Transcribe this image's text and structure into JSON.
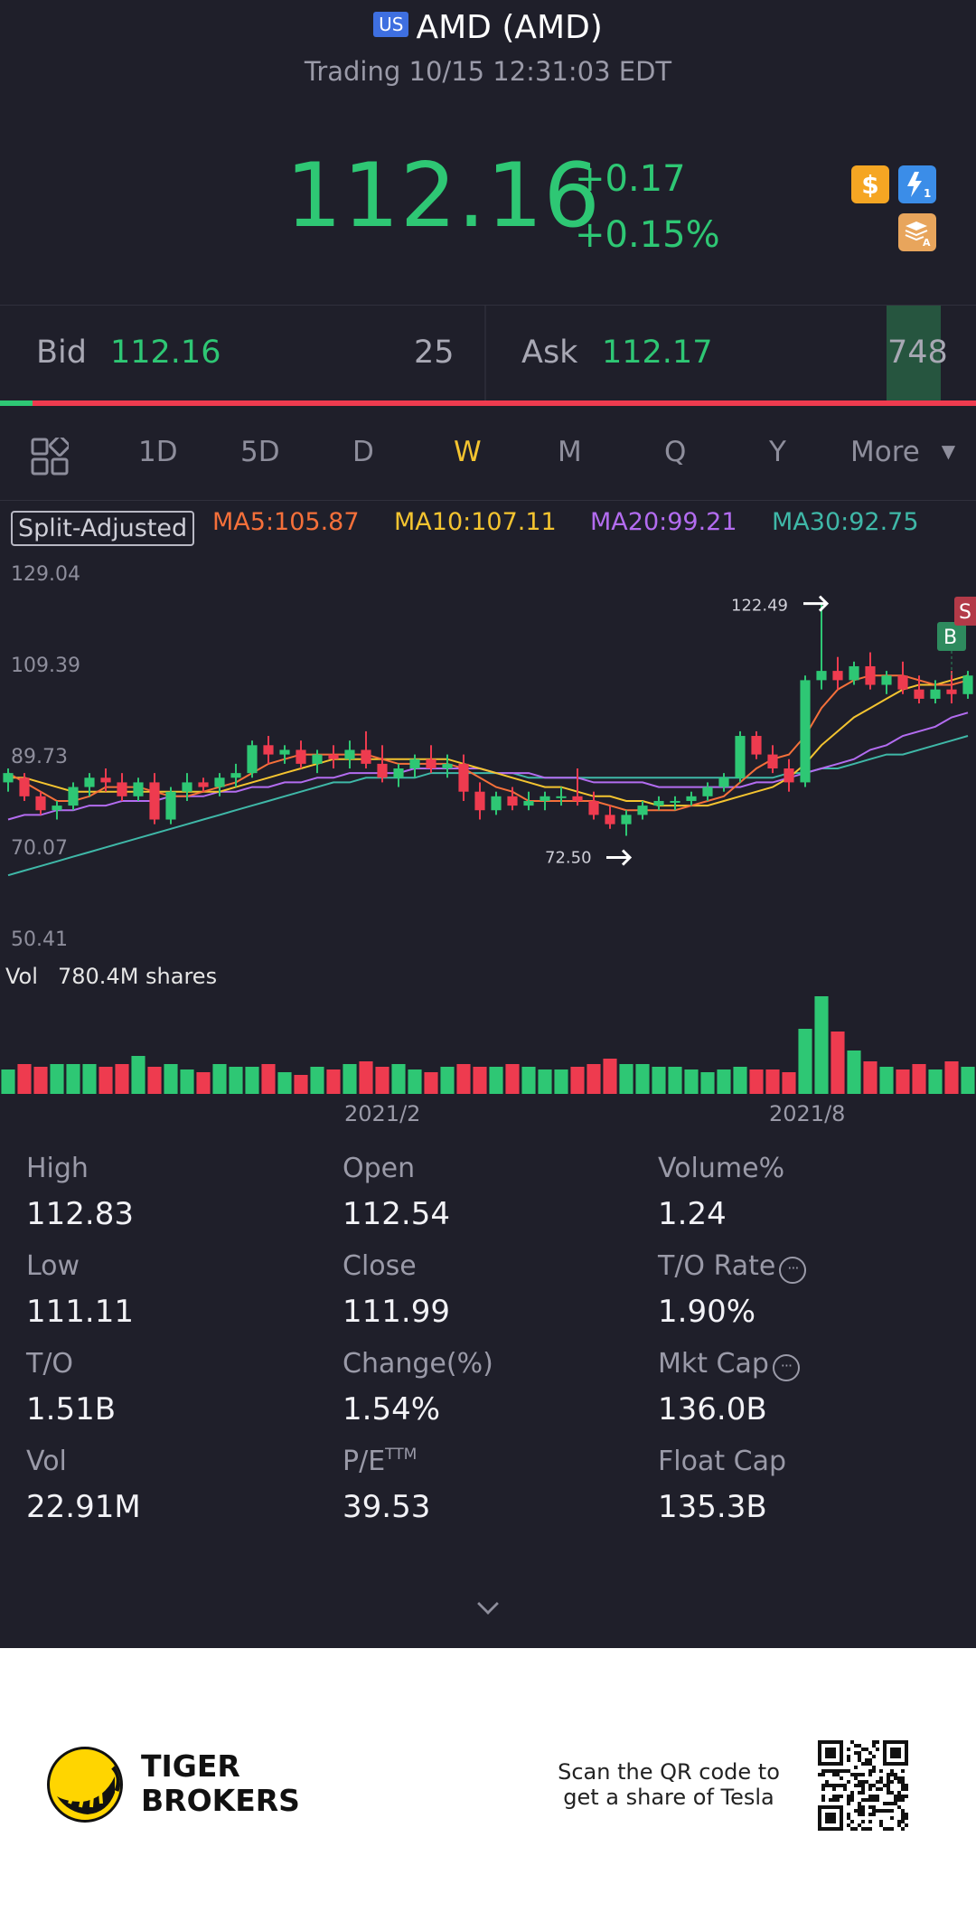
{
  "header": {
    "market_badge": "US",
    "title": "AMD (AMD)",
    "subtitle": "Trading 10/15 12:31:03 EDT"
  },
  "quote": {
    "price": "112.16",
    "change": "+0.17",
    "change_pct": "+0.15%",
    "icons": [
      "dollar-icon",
      "lightning-level-1-icon",
      "layers-a-icon"
    ]
  },
  "bid_ask": {
    "bid_label": "Bid",
    "bid_price": "112.16",
    "bid_qty": "25",
    "ask_label": "Ask",
    "ask_price": "112.17",
    "ask_qty": "748"
  },
  "tabs": {
    "items": [
      "1D",
      "5D",
      "D",
      "W",
      "M",
      "Q",
      "Y",
      "More"
    ],
    "active": "W"
  },
  "indicators": {
    "split_label": "Split-Adjusted",
    "ma5": "MA5:105.87",
    "ma10": "MA10:107.11",
    "ma20": "MA20:99.21",
    "ma30": "MA30:92.75",
    "colors": {
      "ma5": "#f5703a",
      "ma10": "#f4c430",
      "ma20": "#b36cf0",
      "ma30": "#3fb8a8"
    }
  },
  "chart_data": {
    "type": "candlestick",
    "y_ticks": [
      "129.04",
      "109.39",
      "89.73",
      "70.07",
      "50.41"
    ],
    "ylim": [
      50.41,
      129.04
    ],
    "high_marker": "122.49",
    "low_marker": "72.50",
    "trade_markers": [
      "B",
      "S"
    ],
    "x_ticks": [
      "2021/2",
      "2021/8"
    ],
    "volume_label": "Vol",
    "volume_value": "780.4M shares",
    "up_color": "#2ec774",
    "down_color": "#ee3b4f",
    "candles": [
      [
        84,
        87,
        82,
        86
      ],
      [
        85,
        86,
        80,
        81
      ],
      [
        81,
        82,
        77,
        78
      ],
      [
        78,
        80,
        76,
        79
      ],
      [
        79,
        84,
        78,
        83
      ],
      [
        83,
        86,
        81,
        85
      ],
      [
        85,
        87,
        82,
        84
      ],
      [
        84,
        86,
        80,
        81
      ],
      [
        81,
        85,
        80,
        84
      ],
      [
        84,
        86,
        75,
        76
      ],
      [
        76,
        83,
        75,
        82
      ],
      [
        82,
        86,
        80,
        84
      ],
      [
        84,
        85,
        82,
        83
      ],
      [
        83,
        86,
        81,
        85
      ],
      [
        85,
        88,
        83,
        86
      ],
      [
        86,
        93,
        85,
        92
      ],
      [
        92,
        94,
        88,
        90
      ],
      [
        90,
        92,
        88,
        91
      ],
      [
        91,
        93,
        87,
        88
      ],
      [
        88,
        91,
        86,
        90
      ],
      [
        90,
        92,
        87,
        89
      ],
      [
        89,
        93,
        87,
        91
      ],
      [
        91,
        95,
        87,
        88
      ],
      [
        88,
        92,
        84,
        85
      ],
      [
        85,
        88,
        83,
        87
      ],
      [
        87,
        90,
        85,
        89
      ],
      [
        89,
        92,
        86,
        87
      ],
      [
        87,
        90,
        85,
        88
      ],
      [
        88,
        90,
        80,
        82
      ],
      [
        82,
        84,
        76,
        78
      ],
      [
        78,
        82,
        77,
        81
      ],
      [
        81,
        83,
        78,
        79
      ],
      [
        79,
        82,
        78,
        80
      ],
      [
        80,
        82,
        78,
        81
      ],
      [
        81,
        83,
        79,
        81
      ],
      [
        81,
        87,
        79,
        80
      ],
      [
        80,
        82,
        76,
        77
      ],
      [
        77,
        79,
        74,
        75
      ],
      [
        75,
        78,
        72.5,
        77
      ],
      [
        77,
        80,
        76,
        79
      ],
      [
        79,
        81,
        78,
        80
      ],
      [
        80,
        81,
        78,
        80
      ],
      [
        80,
        82,
        79,
        81
      ],
      [
        81,
        84,
        80,
        83
      ],
      [
        83,
        86,
        82,
        85
      ],
      [
        85,
        95,
        84,
        94
      ],
      [
        94,
        95,
        89,
        90
      ],
      [
        90,
        92,
        86,
        87
      ],
      [
        87,
        89,
        82,
        84
      ],
      [
        84,
        107,
        83,
        106
      ],
      [
        106,
        122.49,
        104,
        108
      ],
      [
        108,
        111,
        104,
        106
      ],
      [
        106,
        110,
        105,
        109
      ],
      [
        109,
        112,
        104,
        105
      ],
      [
        105,
        108,
        103,
        107
      ],
      [
        107,
        110,
        103,
        104
      ],
      [
        104,
        107,
        101,
        102
      ],
      [
        102,
        106,
        101,
        104
      ],
      [
        104,
        108,
        101,
        103
      ],
      [
        103,
        108,
        102,
        107
      ]
    ],
    "ma5": [
      86,
      84,
      82,
      80,
      80,
      81,
      83,
      83,
      83,
      82,
      81,
      81,
      82,
      83,
      84,
      86,
      88,
      89,
      90,
      90,
      90,
      90,
      90,
      89,
      88,
      88,
      88,
      88,
      87,
      85,
      83,
      82,
      80,
      80,
      80,
      80,
      80,
      79,
      78,
      78,
      78,
      78,
      79,
      80,
      81,
      84,
      87,
      89,
      90,
      94,
      100,
      104,
      106,
      107,
      107,
      107,
      106,
      105,
      105,
      106
    ],
    "ma10": [
      85,
      85,
      84,
      83,
      82,
      82,
      82,
      82,
      82,
      82,
      82,
      82,
      82,
      82,
      83,
      84,
      85,
      86,
      87,
      88,
      89,
      89,
      89,
      89,
      89,
      89,
      89,
      89,
      88,
      87,
      86,
      85,
      84,
      83,
      83,
      82,
      81,
      81,
      80,
      80,
      79,
      79,
      79,
      79,
      80,
      81,
      82,
      83,
      85,
      88,
      92,
      95,
      98,
      100,
      102,
      104,
      105,
      105,
      106,
      107
    ],
    "ma20": [
      76,
      77,
      77,
      78,
      78,
      79,
      79,
      80,
      80,
      80,
      81,
      81,
      81,
      82,
      82,
      83,
      83,
      84,
      84,
      85,
      85,
      86,
      86,
      86,
      86,
      87,
      87,
      87,
      87,
      87,
      86,
      86,
      86,
      85,
      85,
      85,
      84,
      84,
      84,
      84,
      83,
      83,
      83,
      83,
      83,
      83,
      84,
      84,
      85,
      86,
      87,
      88,
      89,
      91,
      92,
      94,
      95,
      96,
      98,
      99
    ],
    "ma30": [
      64,
      65,
      66,
      67,
      68,
      69,
      70,
      71,
      72,
      73,
      74,
      75,
      76,
      77,
      78,
      79,
      80,
      81,
      82,
      83,
      84,
      84,
      85,
      85,
      85,
      85,
      86,
      86,
      86,
      86,
      86,
      86,
      85,
      85,
      85,
      85,
      85,
      85,
      85,
      85,
      85,
      85,
      85,
      85,
      85,
      85,
      85,
      85,
      86,
      86,
      87,
      87,
      88,
      89,
      90,
      90,
      91,
      92,
      93,
      94
    ],
    "volume": [
      18,
      22,
      20,
      22,
      22,
      22,
      20,
      22,
      28,
      20,
      22,
      18,
      16,
      22,
      20,
      20,
      22,
      16,
      14,
      20,
      18,
      22,
      24,
      20,
      22,
      18,
      16,
      20,
      22,
      20,
      20,
      22,
      20,
      18,
      18,
      20,
      22,
      26,
      22,
      22,
      20,
      20,
      18,
      16,
      18,
      20,
      18,
      18,
      16,
      48,
      72,
      46,
      32,
      24,
      20,
      18,
      22,
      18,
      24,
      20
    ]
  },
  "stats": [
    {
      "label": "High",
      "value": "112.83"
    },
    {
      "label": "Open",
      "value": "112.54"
    },
    {
      "label": "Volume%",
      "value": "1.24"
    },
    {
      "label": "Low",
      "value": "111.11"
    },
    {
      "label": "Close",
      "value": "111.99"
    },
    {
      "label": "T/O Rate",
      "value": "1.90%"
    },
    {
      "label": "T/O",
      "value": "1.51B"
    },
    {
      "label": "Change(%)",
      "value": "1.54%"
    },
    {
      "label": "Mkt Cap",
      "value": "136.0B"
    },
    {
      "label": "Vol",
      "value": "22.91M"
    },
    {
      "label": "P/E",
      "label_sup": "TTM",
      "value": "39.53"
    },
    {
      "label": "Float Cap",
      "value": "135.3B"
    }
  ],
  "footer": {
    "brand_line1": "TIGER",
    "brand_line2": "BROKERS",
    "scan_line1": "Scan the QR code to",
    "scan_line2": "get a share of Tesla"
  }
}
